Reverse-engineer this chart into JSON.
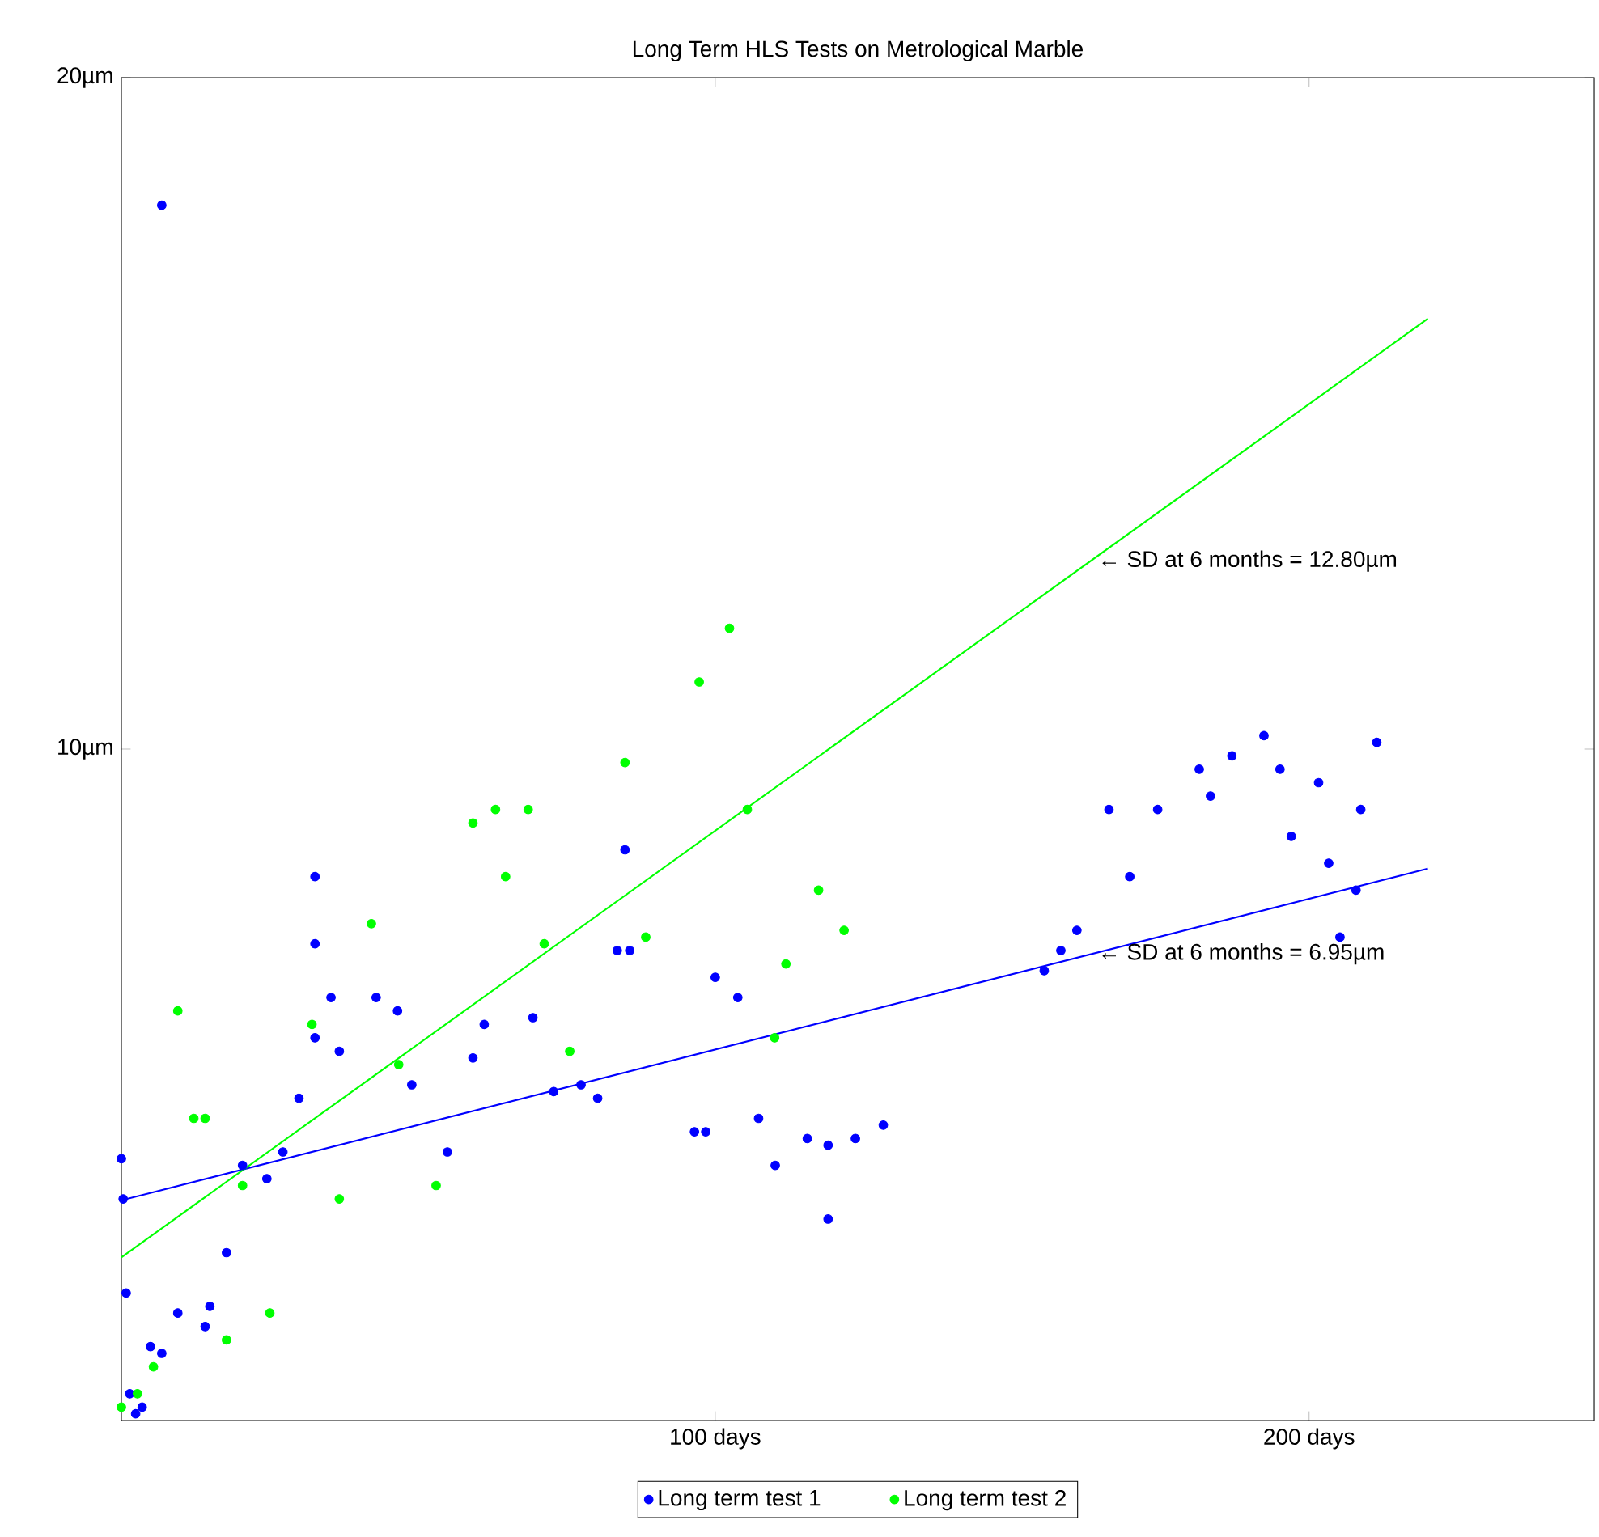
{
  "chart_data": {
    "type": "scatter",
    "title": "Long Term HLS Tests on Metrological Marble",
    "xlim": [
      0,
      248
    ],
    "ylim": [
      0,
      20
    ],
    "xticks": [
      {
        "value": 100,
        "label": "100 days"
      },
      {
        "value": 200,
        "label": "200 days"
      }
    ],
    "yticks": [
      {
        "value": 10,
        "label": "10µm"
      },
      {
        "value": 20,
        "label": "20µm"
      }
    ],
    "legend": "bottom",
    "grid": false,
    "series": [
      {
        "name": "Long term test 1",
        "color": "#0000ff",
        "x": [
          0,
          0.3,
          0.8,
          1.4,
          2.4,
          3.5,
          4.9,
          6.8,
          6.8,
          9.5,
          14.1,
          14.9,
          17.7,
          20.4,
          24.5,
          27.2,
          29.9,
          32.6,
          32.6,
          32.6,
          35.3,
          36.7,
          42.9,
          46.5,
          48.9,
          54.9,
          59.2,
          61.1,
          69.3,
          72.8,
          77.4,
          80.2,
          83.5,
          84.8,
          85.6,
          96.5,
          98.4,
          100,
          103.8,
          107.3,
          110.1,
          115.5,
          119,
          119,
          123.6,
          128.3,
          155.4,
          158.2,
          160.9,
          166.3,
          169.8,
          174.5,
          181.5,
          183.4,
          187,
          192.4,
          195.1,
          197,
          201.6,
          203.3,
          205.2,
          207.9,
          208.7,
          211.4
        ],
        "values": [
          3.9,
          3.3,
          1.9,
          0.4,
          0.1,
          0.2,
          1.1,
          18.1,
          1.0,
          1.6,
          1.4,
          1.7,
          2.5,
          3.8,
          3.6,
          4.0,
          4.8,
          5.7,
          8.1,
          7.1,
          6.3,
          5.5,
          6.3,
          6.1,
          5.0,
          4.0,
          5.4,
          5.9,
          6.0,
          4.9,
          5.0,
          4.8,
          7.0,
          8.5,
          7.0,
          4.3,
          4.3,
          6.6,
          6.3,
          4.5,
          3.8,
          4.2,
          3.0,
          4.1,
          4.2,
          4.4,
          6.7,
          7.0,
          7.3,
          9.1,
          8.1,
          9.1,
          9.7,
          9.3,
          9.9,
          10.2,
          9.7,
          8.7,
          9.5,
          8.3,
          7.2,
          7.9,
          9.1,
          10.1
        ]
      },
      {
        "name": "Long term test 2",
        "color": "#00ff00",
        "x": [
          0,
          2.7,
          5.4,
          9.5,
          12.2,
          14.1,
          17.7,
          20.4,
          25,
          32.1,
          36.7,
          42.1,
          46.7,
          53,
          59.2,
          63,
          64.7,
          68.5,
          71.2,
          75.5,
          84.8,
          88.3,
          97.3,
          102.4,
          105.4,
          110,
          111.9,
          117.4,
          121.7
        ],
        "values": [
          0.2,
          0.4,
          0.8,
          6.1,
          4.5,
          4.5,
          1.2,
          3.5,
          1.6,
          5.9,
          3.3,
          7.4,
          5.3,
          3.5,
          8.9,
          9.1,
          8.1,
          9.1,
          7.1,
          5.5,
          9.8,
          7.2,
          11.0,
          11.8,
          9.1,
          5.7,
          6.8,
          7.9,
          7.3
        ]
      },
      {
        "color": "#0000ff",
        "type": "line",
        "x": [
          0,
          220
        ],
        "values": [
          3.28,
          8.22
        ]
      },
      {
        "color": "#00ff00",
        "type": "line",
        "x": [
          0,
          220
        ],
        "values": [
          2.43,
          16.41
        ]
      }
    ],
    "annotations": [
      {
        "text": "← SD at 6 months = 12.80µm",
        "x": 164,
        "y": 12.8
      },
      {
        "text": "← SD at 6 months = 6.95µm",
        "x": 164,
        "y": 6.95
      }
    ]
  }
}
